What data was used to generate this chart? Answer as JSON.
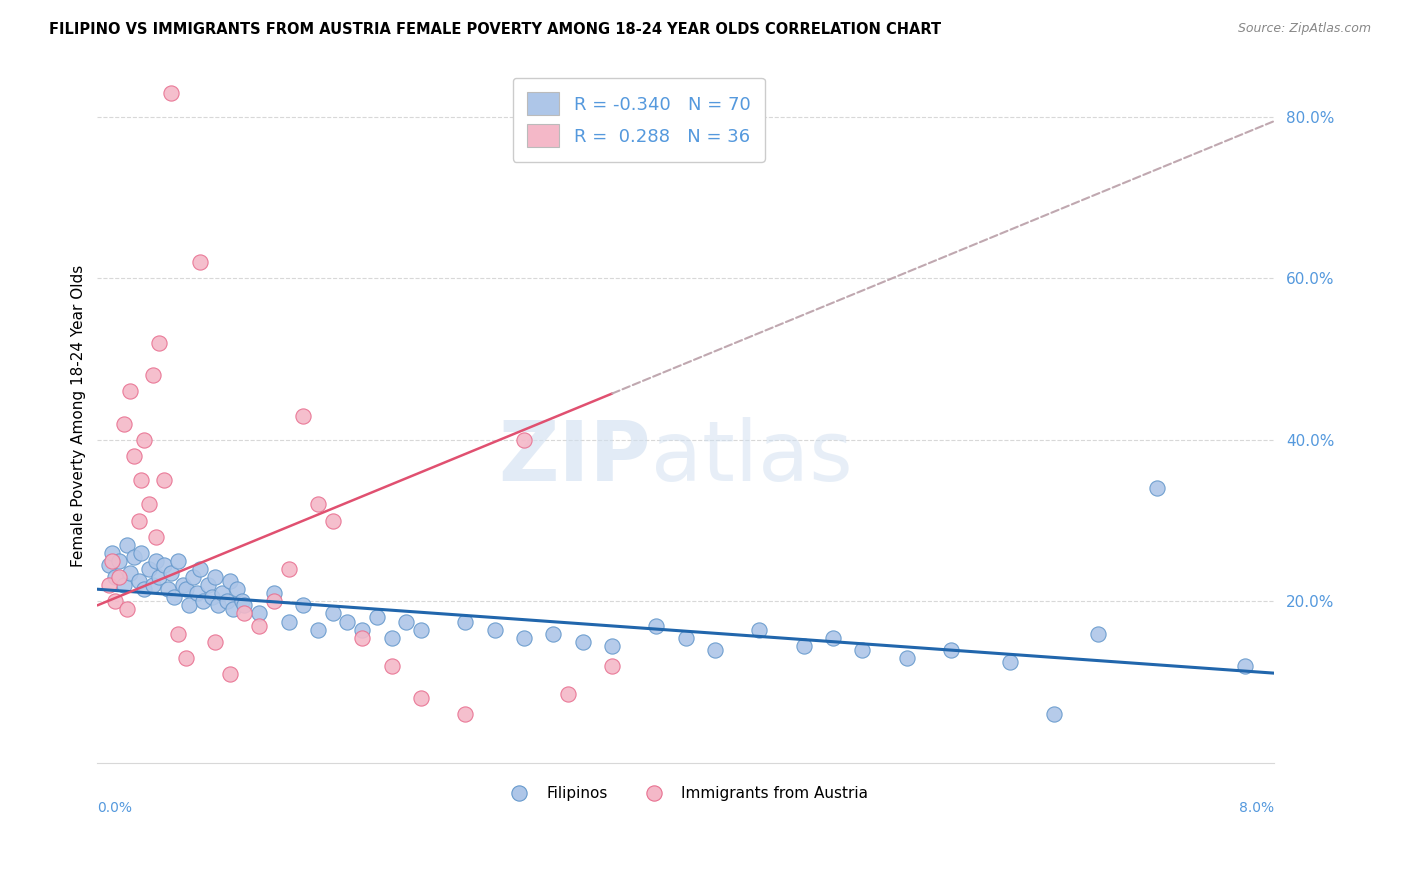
{
  "title": "FILIPINO VS IMMIGRANTS FROM AUSTRIA FEMALE POVERTY AMONG 18-24 YEAR OLDS CORRELATION CHART",
  "source": "Source: ZipAtlas.com",
  "ylabel": "Female Poverty Among 18-24 Year Olds",
  "xlim": [
    0.0,
    0.08
  ],
  "ylim": [
    0.0,
    0.86
  ],
  "legend_blue_R": "-0.340",
  "legend_blue_N": "70",
  "legend_pink_R": "0.288",
  "legend_pink_N": "36",
  "watermark_zip": "ZIP",
  "watermark_atlas": "atlas",
  "blue_color": "#aec6e8",
  "blue_edge_color": "#6699cc",
  "pink_color": "#f4b8c8",
  "pink_edge_color": "#e87090",
  "blue_line_color": "#2166ac",
  "pink_line_color": "#e05070",
  "gray_dash_color": "#c0a8b0",
  "grid_color": "#d8d8d8",
  "right_tick_color": "#5599dd",
  "filipinos_x": [
    0.0008,
    0.001,
    0.0012,
    0.0015,
    0.0018,
    0.002,
    0.0022,
    0.0025,
    0.0028,
    0.003,
    0.0032,
    0.0035,
    0.0038,
    0.004,
    0.0042,
    0.0045,
    0.0048,
    0.005,
    0.0052,
    0.0055,
    0.0058,
    0.006,
    0.0062,
    0.0065,
    0.0068,
    0.007,
    0.0072,
    0.0075,
    0.0078,
    0.008,
    0.0082,
    0.0085,
    0.0088,
    0.009,
    0.0092,
    0.0095,
    0.0098,
    0.01,
    0.011,
    0.012,
    0.013,
    0.014,
    0.015,
    0.016,
    0.017,
    0.018,
    0.019,
    0.02,
    0.021,
    0.022,
    0.025,
    0.027,
    0.029,
    0.031,
    0.033,
    0.035,
    0.038,
    0.04,
    0.042,
    0.045,
    0.048,
    0.05,
    0.052,
    0.055,
    0.058,
    0.062,
    0.065,
    0.068,
    0.072,
    0.078
  ],
  "filipinos_y": [
    0.245,
    0.26,
    0.23,
    0.25,
    0.22,
    0.27,
    0.235,
    0.255,
    0.225,
    0.26,
    0.215,
    0.24,
    0.22,
    0.25,
    0.23,
    0.245,
    0.215,
    0.235,
    0.205,
    0.25,
    0.22,
    0.215,
    0.195,
    0.23,
    0.21,
    0.24,
    0.2,
    0.22,
    0.205,
    0.23,
    0.195,
    0.21,
    0.2,
    0.225,
    0.19,
    0.215,
    0.2,
    0.195,
    0.185,
    0.21,
    0.175,
    0.195,
    0.165,
    0.185,
    0.175,
    0.165,
    0.18,
    0.155,
    0.175,
    0.165,
    0.175,
    0.165,
    0.155,
    0.16,
    0.15,
    0.145,
    0.17,
    0.155,
    0.14,
    0.165,
    0.145,
    0.155,
    0.14,
    0.13,
    0.14,
    0.125,
    0.06,
    0.16,
    0.34,
    0.12
  ],
  "austria_x": [
    0.0008,
    0.001,
    0.0012,
    0.0015,
    0.0018,
    0.002,
    0.0022,
    0.0025,
    0.0028,
    0.003,
    0.0032,
    0.0035,
    0.0038,
    0.004,
    0.0042,
    0.0045,
    0.005,
    0.0055,
    0.006,
    0.007,
    0.008,
    0.009,
    0.01,
    0.011,
    0.012,
    0.013,
    0.014,
    0.015,
    0.016,
    0.018,
    0.02,
    0.022,
    0.025,
    0.029,
    0.032,
    0.035
  ],
  "austria_y": [
    0.22,
    0.25,
    0.2,
    0.23,
    0.42,
    0.19,
    0.46,
    0.38,
    0.3,
    0.35,
    0.4,
    0.32,
    0.48,
    0.28,
    0.52,
    0.35,
    0.83,
    0.16,
    0.13,
    0.62,
    0.15,
    0.11,
    0.185,
    0.17,
    0.2,
    0.24,
    0.43,
    0.32,
    0.3,
    0.155,
    0.12,
    0.08,
    0.06,
    0.4,
    0.085,
    0.12
  ],
  "austria_line_start": 0.0,
  "austria_line_end_solid": 0.035,
  "austria_line_end_dash": 0.08,
  "austria_intercept": 0.195,
  "austria_slope": 7.5,
  "blue_intercept": 0.215,
  "blue_slope": -1.3
}
